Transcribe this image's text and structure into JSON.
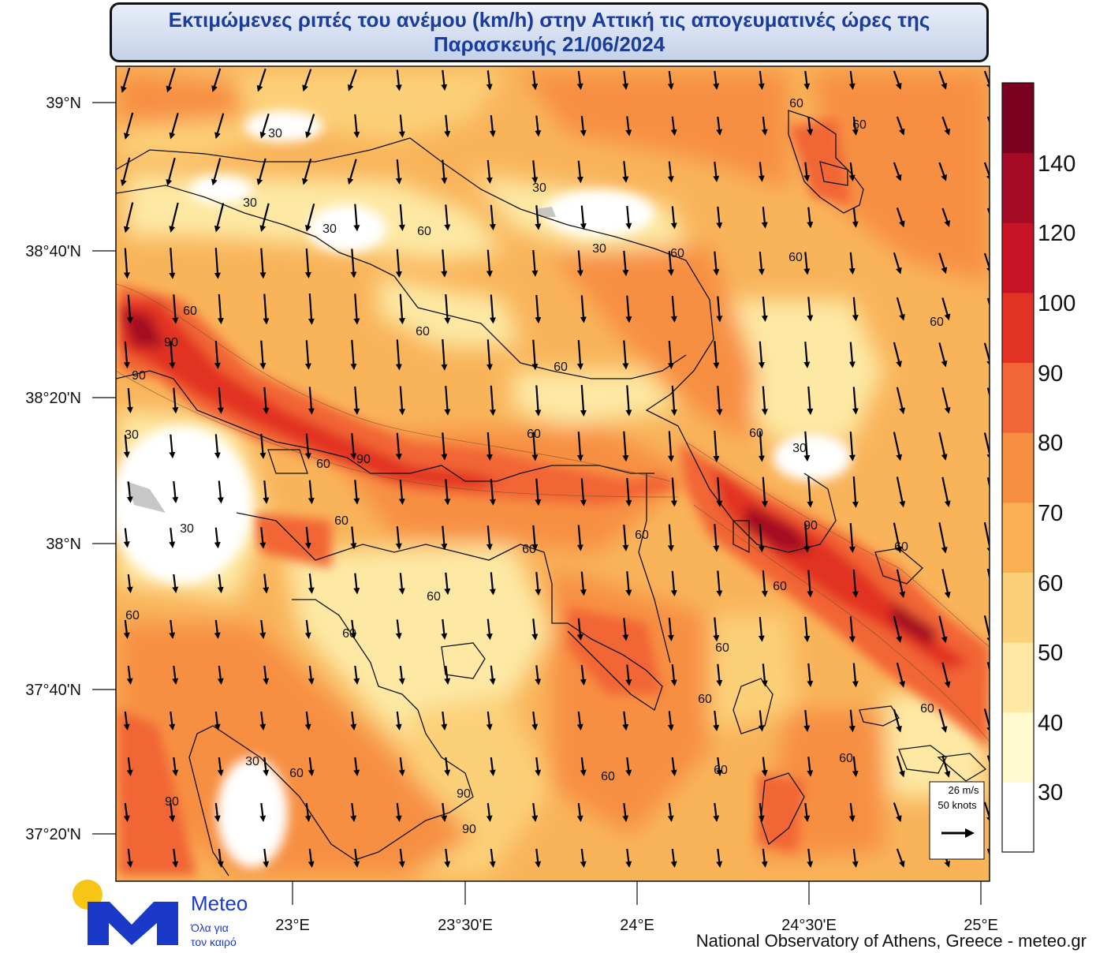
{
  "title": {
    "line1": "Εκτιμώμενες ριπές του ανέμου (km/h) στην Αττική τις απογευματινές ώρες της",
    "line2": "Παρασκευής 21/06/2024"
  },
  "map": {
    "lat_ticks": [
      "39°N",
      "38°40'N",
      "38°20'N",
      "38°N",
      "37°40'N",
      "37°20'N"
    ],
    "lon_ticks": [
      "23°E",
      "23°30'E",
      "24°E",
      "24°30'E",
      "25°E"
    ],
    "contour_labels": [
      "30",
      "30",
      "30",
      "30",
      "30",
      "30",
      "30",
      "30",
      "30",
      "60",
      "60",
      "60",
      "60",
      "60",
      "60",
      "60",
      "60",
      "60",
      "60",
      "60",
      "60",
      "60",
      "60",
      "60",
      "60",
      "60",
      "60",
      "60",
      "60",
      "60",
      "60",
      "60",
      "60",
      "60",
      "60",
      "60",
      "90",
      "90",
      "90",
      "90",
      "90",
      "90",
      "90"
    ],
    "wind_direction": "north to south",
    "reference_vector": {
      "speed_ms": "26 m/s",
      "speed_knots": "50 knots"
    }
  },
  "colorbar": {
    "labels": [
      "140",
      "120",
      "100",
      "90",
      "80",
      "70",
      "60",
      "50",
      "40",
      "30"
    ],
    "colors": [
      "#7a0020",
      "#a50b24",
      "#c81225",
      "#e23224",
      "#f26536",
      "#f78f42",
      "#faaf52",
      "#fcd078",
      "#fde9a4",
      "#fffbcf",
      "#ffffff"
    ]
  },
  "logo": {
    "brand": "Meteo",
    "tagline1": "Όλα για",
    "tagline2": "τον καιρό",
    "accent_color": "#f6c515",
    "brand_color": "#1b39c8"
  },
  "credit": "National Observatory of Athens, Greece - meteo.gr"
}
